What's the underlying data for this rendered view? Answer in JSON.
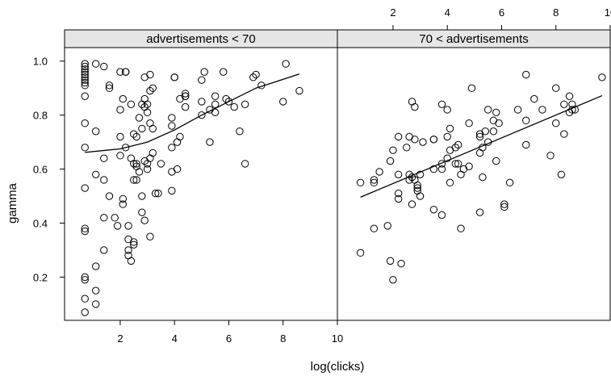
{
  "chart_data": {
    "type": "scatter",
    "xlabel": "log(clicks)",
    "ylabel": "gamma",
    "x_ticks": [
      2,
      4,
      6,
      8,
      10
    ],
    "y_ticks": [
      0.2,
      0.4,
      0.6,
      0.8,
      1.0
    ],
    "y_tick_labels": [
      "0.2",
      "0.4",
      "0.6",
      "0.8",
      "1.0"
    ],
    "xlim": [
      -0.05,
      10.0
    ],
    "ylim": [
      0.04,
      1.05
    ],
    "grid": false,
    "marker": "open-circle",
    "panels": [
      {
        "strip": "advertisements < 70",
        "points": [
          [
            0.7,
            0.99
          ],
          [
            0.7,
            0.98
          ],
          [
            0.7,
            0.97
          ],
          [
            0.7,
            0.96
          ],
          [
            0.7,
            0.95
          ],
          [
            0.7,
            0.94
          ],
          [
            0.7,
            0.93
          ],
          [
            0.7,
            0.92
          ],
          [
            0.7,
            0.91
          ],
          [
            0.7,
            0.87
          ],
          [
            0.7,
            0.77
          ],
          [
            0.7,
            0.68
          ],
          [
            0.7,
            0.53
          ],
          [
            0.7,
            0.38
          ],
          [
            0.7,
            0.37
          ],
          [
            0.7,
            0.2
          ],
          [
            0.7,
            0.19
          ],
          [
            0.7,
            0.12
          ],
          [
            0.7,
            0.07
          ],
          [
            1.1,
            0.99
          ],
          [
            1.1,
            0.74
          ],
          [
            1.1,
            0.58
          ],
          [
            1.1,
            0.24
          ],
          [
            1.1,
            0.15
          ],
          [
            1.1,
            0.1
          ],
          [
            1.4,
            0.98
          ],
          [
            1.4,
            0.64
          ],
          [
            1.4,
            0.56
          ],
          [
            1.4,
            0.42
          ],
          [
            1.4,
            0.3
          ],
          [
            1.6,
            0.91
          ],
          [
            1.6,
            0.9
          ],
          [
            1.6,
            0.5
          ],
          [
            1.8,
            0.42
          ],
          [
            1.9,
            0.39
          ],
          [
            2.0,
            0.96
          ],
          [
            2.0,
            0.82
          ],
          [
            2.0,
            0.72
          ],
          [
            2.0,
            0.65
          ],
          [
            2.1,
            0.86
          ],
          [
            2.1,
            0.49
          ],
          [
            2.1,
            0.47
          ],
          [
            2.2,
            0.96
          ],
          [
            2.2,
            0.96
          ],
          [
            2.2,
            0.68
          ],
          [
            2.3,
            0.39
          ],
          [
            2.3,
            0.34
          ],
          [
            2.3,
            0.3
          ],
          [
            2.3,
            0.28
          ],
          [
            2.4,
            0.84
          ],
          [
            2.4,
            0.64
          ],
          [
            2.4,
            0.26
          ],
          [
            2.5,
            0.73
          ],
          [
            2.5,
            0.62
          ],
          [
            2.5,
            0.56
          ],
          [
            2.5,
            0.33
          ],
          [
            2.5,
            0.32
          ],
          [
            2.6,
            0.72
          ],
          [
            2.6,
            0.62
          ],
          [
            2.6,
            0.61
          ],
          [
            2.6,
            0.56
          ],
          [
            2.7,
            0.79
          ],
          [
            2.7,
            0.59
          ],
          [
            2.8,
            0.84
          ],
          [
            2.8,
            0.75
          ],
          [
            2.8,
            0.5
          ],
          [
            2.8,
            0.44
          ],
          [
            2.9,
            0.94
          ],
          [
            2.9,
            0.86
          ],
          [
            2.9,
            0.83
          ],
          [
            2.9,
            0.63
          ],
          [
            2.9,
            0.41
          ],
          [
            3.0,
            0.84
          ],
          [
            3.0,
            0.81
          ],
          [
            3.0,
            0.62
          ],
          [
            3.0,
            0.6
          ],
          [
            3.1,
            0.95
          ],
          [
            3.1,
            0.89
          ],
          [
            3.1,
            0.77
          ],
          [
            3.1,
            0.64
          ],
          [
            3.1,
            0.35
          ],
          [
            3.2,
            0.9
          ],
          [
            3.2,
            0.75
          ],
          [
            3.2,
            0.66
          ],
          [
            3.3,
            0.51
          ],
          [
            3.4,
            0.51
          ],
          [
            3.5,
            0.62
          ],
          [
            3.9,
            0.79
          ],
          [
            3.9,
            0.76
          ],
          [
            3.9,
            0.68
          ],
          [
            3.9,
            0.59
          ],
          [
            3.9,
            0.52
          ],
          [
            4.0,
            0.94
          ],
          [
            4.0,
            0.94
          ],
          [
            4.1,
            0.7
          ],
          [
            4.1,
            0.6
          ],
          [
            4.2,
            0.86
          ],
          [
            4.2,
            0.72
          ],
          [
            4.4,
            0.88
          ],
          [
            4.4,
            0.87
          ],
          [
            4.4,
            0.87
          ],
          [
            4.4,
            0.83
          ],
          [
            5.0,
            0.93
          ],
          [
            5.0,
            0.85
          ],
          [
            5.0,
            0.8
          ],
          [
            5.1,
            0.96
          ],
          [
            5.3,
            0.82
          ],
          [
            5.3,
            0.7
          ],
          [
            5.5,
            0.87
          ],
          [
            5.5,
            0.84
          ],
          [
            5.5,
            0.81
          ],
          [
            5.8,
            0.96
          ],
          [
            5.9,
            0.86
          ],
          [
            6.0,
            0.85
          ],
          [
            6.2,
            0.83
          ],
          [
            6.4,
            0.74
          ],
          [
            6.6,
            0.84
          ],
          [
            6.6,
            0.62
          ],
          [
            6.9,
            0.94
          ],
          [
            7.0,
            0.95
          ],
          [
            7.2,
            0.91
          ],
          [
            8.0,
            0.85
          ],
          [
            8.1,
            0.99
          ],
          [
            8.6,
            0.89
          ]
        ],
        "fit": [
          [
            0.7,
            0.662
          ],
          [
            2.0,
            0.675
          ],
          [
            3.0,
            0.7
          ],
          [
            4.0,
            0.745
          ],
          [
            5.0,
            0.8
          ],
          [
            6.0,
            0.85
          ],
          [
            7.0,
            0.9
          ],
          [
            8.6,
            0.952
          ]
        ]
      },
      {
        "strip": "70 < advertisements",
        "points": [
          [
            0.8,
            0.29
          ],
          [
            0.8,
            0.55
          ],
          [
            1.3,
            0.56
          ],
          [
            1.3,
            0.55
          ],
          [
            1.3,
            0.38
          ],
          [
            1.5,
            0.59
          ],
          [
            1.8,
            0.39
          ],
          [
            1.9,
            0.26
          ],
          [
            1.9,
            0.63
          ],
          [
            2.0,
            0.19
          ],
          [
            2.0,
            0.67
          ],
          [
            2.2,
            0.72
          ],
          [
            2.2,
            0.58
          ],
          [
            2.2,
            0.51
          ],
          [
            2.2,
            0.49
          ],
          [
            2.3,
            0.25
          ],
          [
            2.5,
            0.68
          ],
          [
            2.6,
            0.72
          ],
          [
            2.6,
            0.58
          ],
          [
            2.6,
            0.56
          ],
          [
            2.7,
            0.85
          ],
          [
            2.7,
            0.57
          ],
          [
            2.7,
            0.47
          ],
          [
            2.8,
            0.83
          ],
          [
            2.8,
            0.71
          ],
          [
            2.8,
            0.56
          ],
          [
            2.9,
            0.54
          ],
          [
            2.9,
            0.53
          ],
          [
            2.9,
            0.52
          ],
          [
            3.0,
            0.58
          ],
          [
            3.0,
            0.5
          ],
          [
            3.1,
            0.7
          ],
          [
            3.5,
            0.71
          ],
          [
            3.5,
            0.71
          ],
          [
            3.5,
            0.6
          ],
          [
            3.5,
            0.45
          ],
          [
            3.8,
            0.84
          ],
          [
            3.8,
            0.62
          ],
          [
            3.8,
            0.6
          ],
          [
            3.8,
            0.43
          ],
          [
            4.0,
            0.82
          ],
          [
            4.0,
            0.72
          ],
          [
            4.0,
            0.64
          ],
          [
            4.1,
            0.75
          ],
          [
            4.1,
            0.67
          ],
          [
            4.1,
            0.55
          ],
          [
            4.3,
            0.68
          ],
          [
            4.3,
            0.62
          ],
          [
            4.4,
            0.69
          ],
          [
            4.4,
            0.62
          ],
          [
            4.5,
            0.58
          ],
          [
            4.5,
            0.38
          ],
          [
            4.6,
            0.6
          ],
          [
            4.8,
            0.77
          ],
          [
            4.8,
            0.61
          ],
          [
            4.9,
            0.9
          ],
          [
            5.2,
            0.73
          ],
          [
            5.2,
            0.72
          ],
          [
            5.2,
            0.66
          ],
          [
            5.2,
            0.44
          ],
          [
            5.3,
            0.68
          ],
          [
            5.3,
            0.57
          ],
          [
            5.4,
            0.74
          ],
          [
            5.5,
            0.82
          ],
          [
            5.5,
            0.7
          ],
          [
            5.7,
            0.78
          ],
          [
            5.7,
            0.74
          ],
          [
            5.8,
            0.81
          ],
          [
            5.8,
            0.63
          ],
          [
            5.9,
            0.77
          ],
          [
            6.1,
            0.47
          ],
          [
            6.1,
            0.46
          ],
          [
            6.3,
            0.55
          ],
          [
            6.6,
            0.82
          ],
          [
            6.9,
            0.95
          ],
          [
            6.9,
            0.78
          ],
          [
            6.9,
            0.69
          ],
          [
            7.2,
            0.86
          ],
          [
            7.5,
            0.82
          ],
          [
            7.8,
            0.65
          ],
          [
            8.0,
            0.9
          ],
          [
            8.0,
            0.77
          ],
          [
            8.2,
            0.58
          ],
          [
            8.3,
            0.84
          ],
          [
            8.3,
            0.73
          ],
          [
            8.5,
            0.87
          ],
          [
            8.5,
            0.81
          ],
          [
            8.6,
            0.84
          ],
          [
            8.6,
            0.82
          ],
          [
            8.7,
            0.82
          ],
          [
            9.7,
            0.94
          ]
        ],
        "fit": [
          [
            0.8,
            0.496
          ],
          [
            9.7,
            0.872
          ]
        ]
      }
    ]
  }
}
